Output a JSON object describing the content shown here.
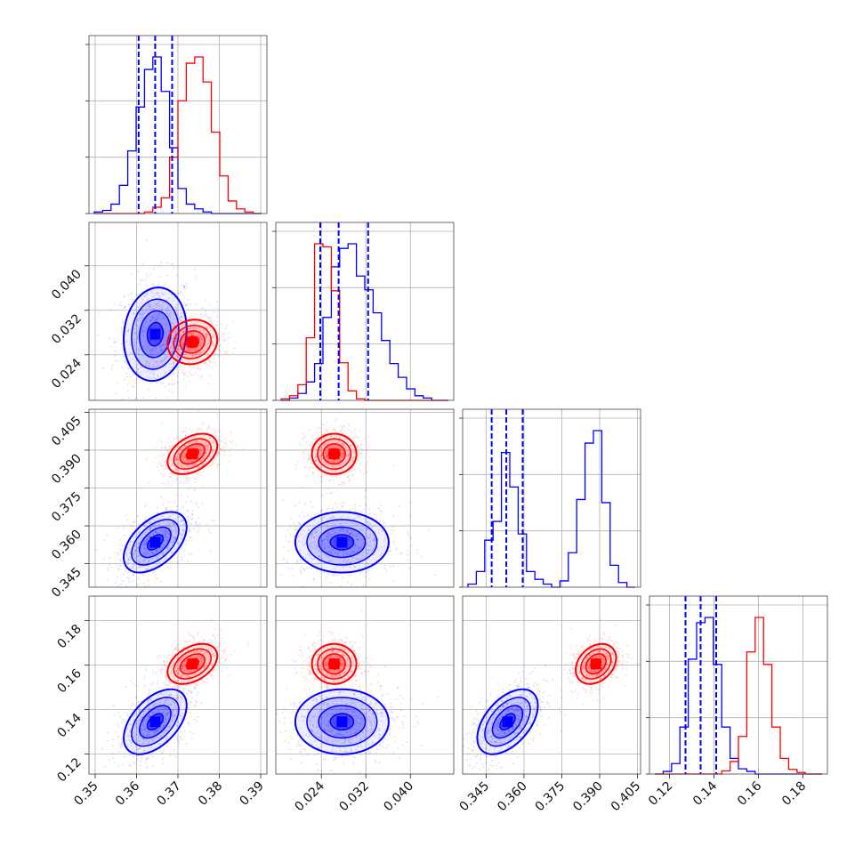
{
  "chart_data": {
    "type": "corner",
    "colors": {
      "series_a": "#0000ff",
      "series_b": "#ff0000"
    },
    "grid": true,
    "params": [
      {
        "range": [
          0.3485,
          0.3915
        ],
        "ticks": [
          0.35,
          0.36,
          0.37,
          0.38,
          0.39
        ],
        "labels": [
          "0.35",
          "0.36",
          "0.37",
          "0.38",
          "0.39"
        ]
      },
      {
        "range": [
          0.0158,
          0.0478
        ],
        "ticks": [
          0.024,
          0.032,
          0.04
        ],
        "labels": [
          "0.024",
          "0.032",
          "0.040"
        ]
      },
      {
        "range": [
          0.3357,
          0.4062
        ],
        "ticks": [
          0.345,
          0.36,
          0.375,
          0.39,
          0.405
        ],
        "labels": [
          "0.345",
          "0.360",
          "0.375",
          "0.390",
          "0.405"
        ]
      },
      {
        "range": [
          0.111,
          0.191
        ],
        "ticks": [
          0.12,
          0.14,
          0.16,
          0.18
        ],
        "labels": [
          "0.12",
          "0.14",
          "0.16",
          "0.18"
        ]
      }
    ],
    "series": [
      {
        "name": "",
        "color": "#0000ff",
        "mean": [
          0.3645,
          0.0277,
          0.3535,
          0.1345
        ],
        "sd": [
          0.0038,
          0.0042,
          0.006,
          0.0073
        ],
        "corr": {
          "0-1": 0.1,
          "0-2": 0.5,
          "0-3": 0.5,
          "1-2": 0.0,
          "1-3": 0.0,
          "2-3": 0.5
        },
        "quantiles": [
          [
            0.3605,
            0.3645,
            0.3686
          ],
          [
            0.0238,
            0.0271,
            0.0324
          ],
          [
            0.3472,
            0.353,
            0.3595
          ],
          [
            0.1272,
            0.134,
            0.141
          ]
        ]
      },
      {
        "name": "",
        "color": "#ff0000",
        "mean": [
          0.3735,
          0.0263,
          0.3885,
          0.1605
        ],
        "sd": [
          0.003,
          0.002,
          0.004,
          0.0045
        ],
        "corr": {
          "0-1": 0.1,
          "0-2": 0.4,
          "0-3": 0.4,
          "1-2": 0.0,
          "1-3": 0.0,
          "2-3": 0.3
        }
      }
    ],
    "histograms": [
      {
        "bins": 20,
        "series": [
          [
            1,
            2,
            6,
            18,
            40,
            68,
            92,
            100,
            78,
            42,
            16,
            6,
            3,
            1,
            0,
            0,
            0,
            0,
            0,
            0
          ],
          [
            0,
            0,
            0,
            0,
            0,
            0,
            1,
            4,
            10,
            36,
            72,
            96,
            100,
            84,
            52,
            24,
            8,
            3,
            1,
            0
          ]
        ]
      },
      {
        "bins": 20,
        "series": [
          [
            0,
            1,
            3,
            8,
            16,
            36,
            58,
            66,
            68,
            54,
            48,
            38,
            26,
            16,
            10,
            5,
            2,
            1,
            0,
            0
          ],
          [
            1,
            3,
            10,
            40,
            100,
            98,
            70,
            24,
            6,
            1,
            0,
            0,
            0,
            0,
            0,
            0,
            0,
            0,
            0,
            0
          ]
        ]
      },
      {
        "bins": 20,
        "series": [
          [
            2,
            10,
            30,
            42,
            86,
            64,
            34,
            10,
            5,
            2,
            0,
            4,
            22,
            56,
            92,
            100,
            54,
            14,
            3,
            0
          ],
          [
            0,
            0,
            0,
            0,
            0,
            0,
            0,
            0,
            0,
            0,
            0,
            0,
            0,
            0,
            0,
            0,
            0,
            0,
            0,
            0
          ]
        ]
      },
      {
        "bins": 20,
        "series": [
          [
            0,
            1,
            4,
            18,
            44,
            58,
            60,
            42,
            18,
            6,
            2,
            1,
            0,
            0,
            0,
            0,
            0,
            0,
            0,
            0
          ],
          [
            0,
            0,
            0,
            0,
            0,
            0,
            0,
            0,
            2,
            8,
            24,
            78,
            100,
            70,
            30,
            10,
            3,
            1,
            0,
            0
          ]
        ]
      }
    ]
  }
}
